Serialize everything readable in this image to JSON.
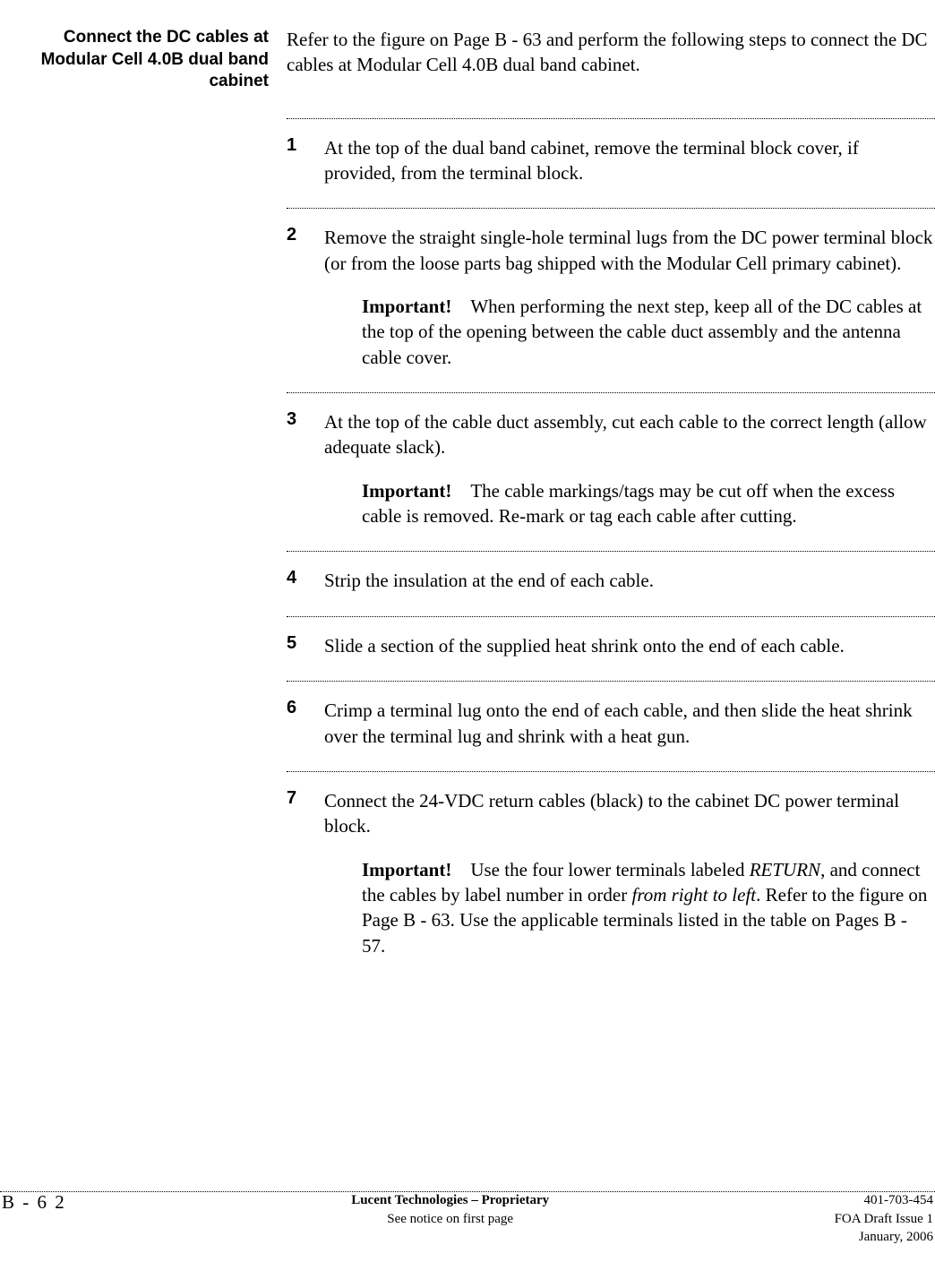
{
  "sidebar": {
    "heading": "Connect the DC cables at Modular Cell 4.0B dual band cabinet"
  },
  "intro": "Refer to the figure on Page B - 63 and perform the following steps to connect the DC cables at Modular Cell 4.0B dual band cabinet.",
  "steps": [
    {
      "num": "1",
      "text": "At the top of the dual band cabinet, remove the terminal block cover, if provided, from the terminal block."
    },
    {
      "num": "2",
      "text": "Remove the straight single-hole terminal lugs from the DC power terminal block (or from the loose parts bag shipped with the Modular Cell primary cabinet).",
      "important": "When performing the next step, keep all of the DC cables at the top of the opening between the cable duct assembly and the antenna cable cover."
    },
    {
      "num": "3",
      "text": "At the top of the cable duct assembly, cut each cable to the correct length (allow adequate slack).",
      "important": "The cable markings/tags may be cut off when the excess cable is removed. Re-mark or tag each cable after cutting."
    },
    {
      "num": "4",
      "text": "Strip the insulation at the end of each cable."
    },
    {
      "num": "5",
      "text": "Slide a section of the supplied heat shrink onto the end of each cable."
    },
    {
      "num": "6",
      "text": "Crimp a terminal lug onto the end of each cable, and then slide the heat shrink over the terminal lug and shrink with a heat gun."
    },
    {
      "num": "7",
      "text": "Connect the 24-VDC return cables (black) to the cabinet DC power terminal block.",
      "important_html": true,
      "important_prefix": "Use the four lower terminals labeled ",
      "important_italic1": "RETURN",
      "important_mid": ", and connect the cables by label number in order ",
      "important_italic2": "from right to left",
      "important_suffix": ". Refer to the figure on Page B - 63. Use the applicable terminals listed in the table on Pages  B - 57."
    }
  ],
  "important_label": "Important!",
  "footer": {
    "page": "B -   6 2",
    "center1": "Lucent Technologies – Proprietary",
    "center2": "See notice on first page",
    "right1": "401-703-454",
    "right2": "FOA Draft Issue 1",
    "right3": "January, 2006"
  }
}
